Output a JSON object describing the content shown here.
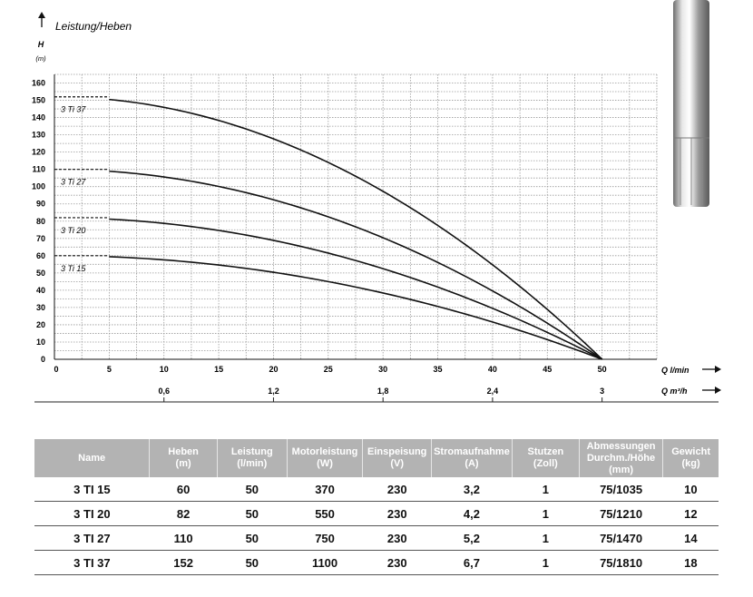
{
  "chart_data": {
    "type": "line",
    "title": "Leistung/Heben",
    "ylabel": "H",
    "yunit": "(m)",
    "xlabel": "Q l/min",
    "xlabel2": "Q m³/h",
    "xlim": [
      0,
      55
    ],
    "ylim": [
      0,
      165
    ],
    "xticks": [
      0,
      5,
      10,
      15,
      20,
      25,
      30,
      35,
      40,
      45,
      50
    ],
    "yticks": [
      0,
      10,
      20,
      30,
      40,
      50,
      60,
      70,
      80,
      90,
      100,
      110,
      120,
      130,
      140,
      150,
      160
    ],
    "x2ticks": [
      {
        "x": 10,
        "label": "0,6"
      },
      {
        "x": 20,
        "label": "1,2"
      },
      {
        "x": 30,
        "label": "1,8"
      },
      {
        "x": 40,
        "label": "2,4"
      },
      {
        "x": 50,
        "label": "3"
      }
    ],
    "grid": true,
    "series": [
      {
        "name": "3 Ti 15",
        "shutoff": 60,
        "x": [
          0,
          10,
          20,
          30,
          40,
          50
        ],
        "y": [
          60,
          58,
          52,
          42,
          28,
          0
        ]
      },
      {
        "name": "3 Ti 20",
        "shutoff": 82,
        "x": [
          0,
          10,
          20,
          30,
          40,
          50
        ],
        "y": [
          82,
          79,
          72,
          59,
          38,
          0
        ]
      },
      {
        "name": "3 Ti 27",
        "shutoff": 110,
        "x": [
          0,
          10,
          20,
          30,
          40,
          50
        ],
        "y": [
          110,
          106,
          97,
          80,
          52,
          0
        ]
      },
      {
        "name": "3 Ti 37",
        "shutoff": 152,
        "x": [
          0,
          10,
          20,
          30,
          40,
          50
        ],
        "y": [
          152,
          147,
          134,
          111,
          72,
          0
        ]
      }
    ]
  },
  "table": {
    "headers": [
      [
        "Name"
      ],
      [
        "Heben",
        "(m)"
      ],
      [
        "Leistung",
        "(l/min)"
      ],
      [
        "Motorleistung",
        "(W)"
      ],
      [
        "Einspeisung",
        "(V)"
      ],
      [
        "Stromaufnahme",
        "(A)"
      ],
      [
        "Stutzen",
        "(Zoll)"
      ],
      [
        "Abmessungen",
        "Durchm./Höhe",
        "(mm)"
      ],
      [
        "Gewicht",
        "(kg)"
      ]
    ],
    "rows": [
      [
        "3 TI 15",
        "60",
        "50",
        "370",
        "230",
        "3,2",
        "1",
        "75/1035",
        "10"
      ],
      [
        "3 TI 20",
        "82",
        "50",
        "550",
        "230",
        "4,2",
        "1",
        "75/1210",
        "12"
      ],
      [
        "3 TI 27",
        "110",
        "50",
        "750",
        "230",
        "5,2",
        "1",
        "75/1470",
        "14"
      ],
      [
        "3 TI 37",
        "152",
        "50",
        "1100",
        "230",
        "6,7",
        "1",
        "75/1810",
        "18"
      ]
    ]
  }
}
